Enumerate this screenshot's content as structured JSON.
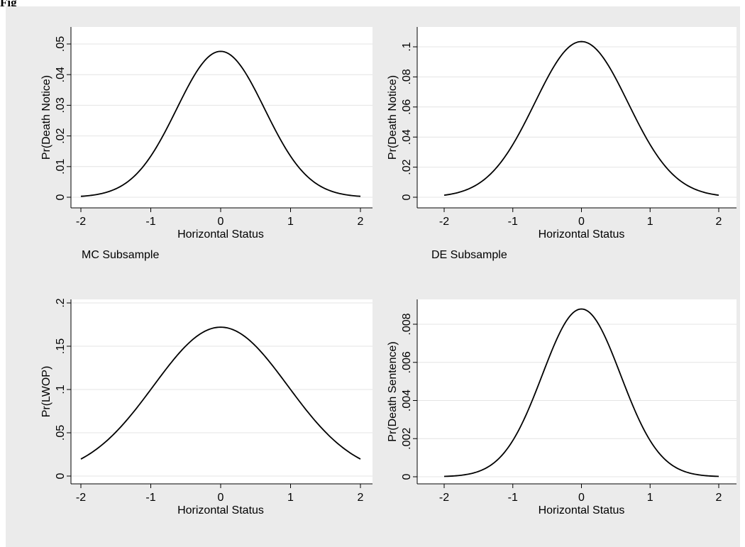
{
  "figure_label": "Fig",
  "subtitles": [
    "MC Subsample",
    "DE Subsample"
  ],
  "chart_data": [
    {
      "type": "line",
      "xlabel": "Horizontal Status",
      "ylabel": "Pr(Death Notice)",
      "xlim": [
        -2,
        2
      ],
      "ylim": [
        0,
        0.05
      ],
      "xticks": [
        -2,
        -1,
        0,
        1,
        2
      ],
      "xtick_labels": [
        "-2",
        "-1",
        "0",
        "1",
        "2"
      ],
      "yticks": [
        0,
        0.01,
        0.02,
        0.03,
        0.04,
        0.05
      ],
      "ytick_labels": [
        "0",
        ".01",
        ".02",
        ".03",
        ".04",
        ".05"
      ],
      "grid": true,
      "series": [
        {
          "x": [
            -2,
            -1.75,
            -1.5,
            -1.25,
            -1,
            -0.75,
            -0.5,
            -0.25,
            0,
            0.25,
            0.5,
            0.75,
            1,
            1.25,
            1.5,
            1.75,
            2
          ],
          "values": [
            0.0004,
            0.0011,
            0.0028,
            0.0064,
            0.0134,
            0.0235,
            0.0345,
            0.0437,
            0.0476,
            0.0437,
            0.0345,
            0.0235,
            0.0134,
            0.0064,
            0.0028,
            0.0011,
            0.0004
          ]
        }
      ]
    },
    {
      "type": "line",
      "xlabel": "Horizontal Status",
      "ylabel": "Pr(Death Notice)",
      "xlim": [
        -2,
        2
      ],
      "ylim": [
        0,
        0.11
      ],
      "xticks": [
        -2,
        -1,
        0,
        1,
        2
      ],
      "xtick_labels": [
        "-2",
        "-1",
        "0",
        "1",
        "2"
      ],
      "yticks": [
        0,
        0.02,
        0.04,
        0.06,
        0.08,
        0.1
      ],
      "ytick_labels": [
        "0",
        ".02",
        ".04",
        ".06",
        ".08",
        ".1"
      ],
      "grid": true,
      "series": [
        {
          "x": [
            -2,
            -1.75,
            -1.5,
            -1.25,
            -1,
            -0.75,
            -0.5,
            -0.25,
            0,
            0.25,
            0.5,
            0.75,
            1,
            1.25,
            1.5,
            1.75,
            2
          ],
          "values": [
            0.0015,
            0.0035,
            0.0085,
            0.0185,
            0.035,
            0.056,
            0.078,
            0.096,
            0.1035,
            0.096,
            0.078,
            0.056,
            0.035,
            0.0185,
            0.0085,
            0.0035,
            0.0015
          ]
        }
      ]
    },
    {
      "type": "line",
      "xlabel": "Horizontal Status",
      "ylabel": "Pr(LWOP)",
      "xlim": [
        -2,
        2
      ],
      "ylim": [
        0,
        0.2
      ],
      "xticks": [
        -2,
        -1,
        0,
        1,
        2
      ],
      "xtick_labels": [
        "-2",
        "-1",
        "0",
        "1",
        "2"
      ],
      "yticks": [
        0,
        0.05,
        0.1,
        0.15,
        0.2
      ],
      "ytick_labels": [
        "0",
        ".05",
        ".1",
        ".15",
        ".2"
      ],
      "grid": true,
      "series": [
        {
          "x": [
            -2,
            -1.75,
            -1.5,
            -1.25,
            -1,
            -0.75,
            -0.5,
            -0.25,
            0,
            0.25,
            0.5,
            0.75,
            1,
            1.25,
            1.5,
            1.75,
            2
          ],
          "values": [
            0.022,
            0.034,
            0.051,
            0.075,
            0.1,
            0.124,
            0.148,
            0.166,
            0.172,
            0.166,
            0.148,
            0.124,
            0.1,
            0.075,
            0.051,
            0.034,
            0.022
          ]
        }
      ]
    },
    {
      "type": "line",
      "xlabel": "Horizontal Status",
      "ylabel": "Pr(Death Sentence)",
      "xlim": [
        -2,
        2
      ],
      "ylim": [
        0,
        0.009
      ],
      "xticks": [
        -2,
        -1,
        0,
        1,
        2
      ],
      "xtick_labels": [
        "-2",
        "-1",
        "0",
        "1",
        "2"
      ],
      "yticks": [
        0,
        0.002,
        0.004,
        0.006,
        0.008
      ],
      "ytick_labels": [
        "0",
        ".002",
        ".004",
        ".006",
        ".008"
      ],
      "grid": true,
      "series": [
        {
          "x": [
            -2,
            -1.75,
            -1.5,
            -1.25,
            -1,
            -0.75,
            -0.5,
            -0.25,
            0,
            0.25,
            0.5,
            0.75,
            1,
            1.25,
            1.5,
            1.75,
            2
          ],
          "values": [
            1e-05,
            5e-05,
            0.0002,
            0.0007,
            0.0019,
            0.004,
            0.0063,
            0.0082,
            0.0088,
            0.0082,
            0.0063,
            0.004,
            0.0019,
            0.0007,
            0.0002,
            5e-05,
            1e-05
          ]
        }
      ]
    }
  ]
}
